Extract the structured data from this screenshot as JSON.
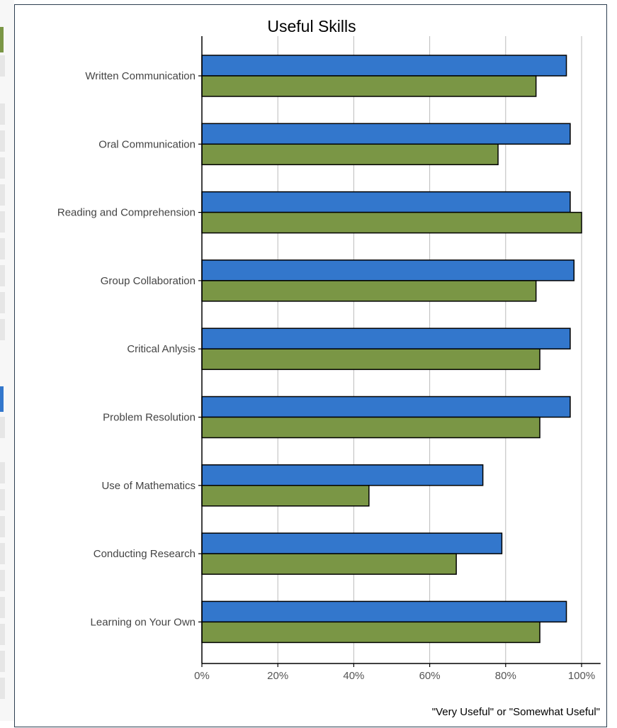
{
  "colors": {
    "series_a": "#3377cc",
    "series_b": "#7a9645",
    "grid": "#bbbbbb",
    "axis": "#000000",
    "frame_border": "#2c3e50"
  },
  "chart_data": {
    "type": "bar",
    "orientation": "horizontal",
    "title": "Useful Skills",
    "xlabel": "\"Very Useful\" or \"Somewhat Useful\"",
    "ylabel": "",
    "categories": [
      "Written Communication",
      "Oral Communication",
      "Reading and Comprehension",
      "Group Collaboration",
      "Critical Anlysis",
      "Problem Resolution",
      "Use of Mathematics",
      "Conducting Research",
      "Learning on Your Own"
    ],
    "series": [
      {
        "color": "#3377cc",
        "values": [
          96,
          97,
          97,
          98,
          97,
          97,
          74,
          79,
          96
        ]
      },
      {
        "color": "#7a9645",
        "values": [
          88,
          78,
          100,
          88,
          89,
          89,
          44,
          67,
          89
        ]
      }
    ],
    "xlim": [
      0,
      105
    ],
    "xticks": [
      0,
      20,
      40,
      60,
      80,
      100
    ],
    "xtick_labels": [
      "0%",
      "20%",
      "40%",
      "60%",
      "80%",
      "100%"
    ],
    "grid": "vertical",
    "legend": "none"
  }
}
